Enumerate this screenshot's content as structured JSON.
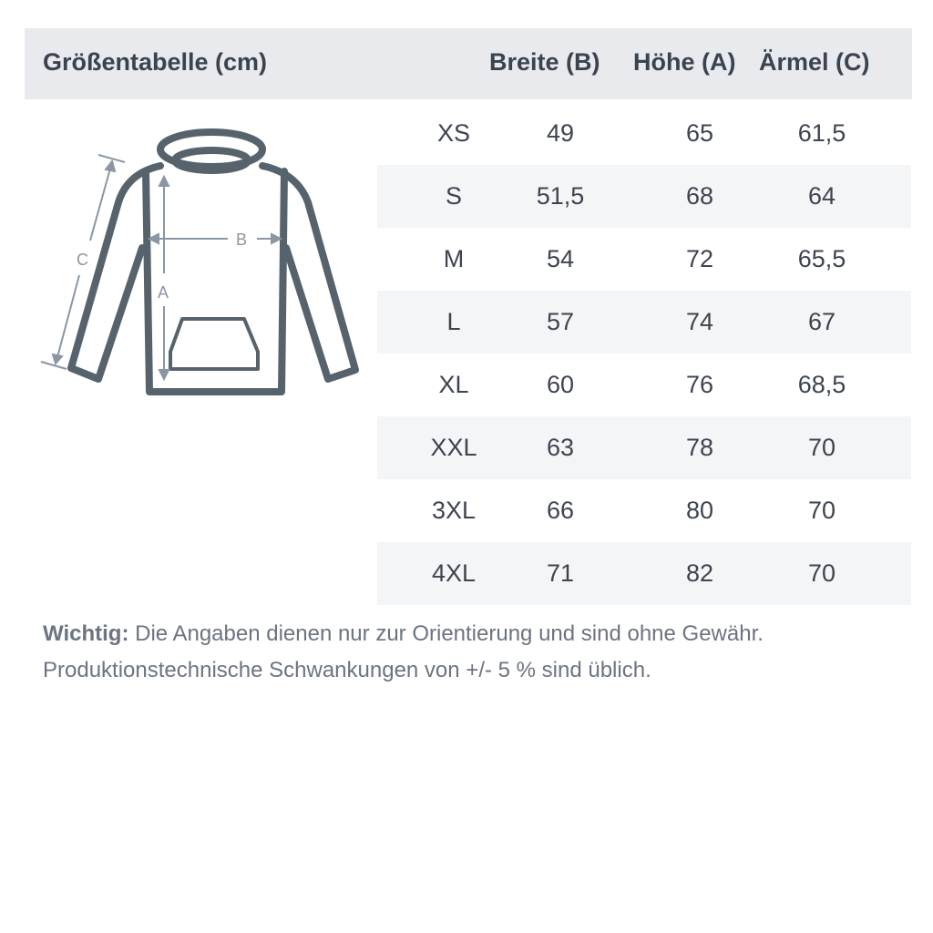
{
  "header": {
    "title": "Größentabelle (cm)",
    "col_breite": "Breite (B)",
    "col_hoehe": "Höhe (A)",
    "col_aermel": "Ärmel (C)"
  },
  "figure": {
    "label_a": "A",
    "label_b": "B",
    "label_c": "C"
  },
  "rows": [
    {
      "size": "XS",
      "breite": "49",
      "hoehe": "65",
      "aermel": "61,5"
    },
    {
      "size": "S",
      "breite": "51,5",
      "hoehe": "68",
      "aermel": "64"
    },
    {
      "size": "M",
      "breite": "54",
      "hoehe": "72",
      "aermel": "65,5"
    },
    {
      "size": "L",
      "breite": "57",
      "hoehe": "74",
      "aermel": "67"
    },
    {
      "size": "XL",
      "breite": "60",
      "hoehe": "76",
      "aermel": "68,5"
    },
    {
      "size": "XXL",
      "breite": "63",
      "hoehe": "78",
      "aermel": "70"
    },
    {
      "size": "3XL",
      "breite": "66",
      "hoehe": "80",
      "aermel": "70"
    },
    {
      "size": "4XL",
      "breite": "71",
      "hoehe": "82",
      "aermel": "70"
    }
  ],
  "note": {
    "bold": "Wichtig:",
    "line1": " Die Angaben dienen nur zur Orientierung und sind ohne Gewähr.",
    "line2": "Produktionstechnische Schwankungen von +/- 5 % sind üblich."
  },
  "colors": {
    "header_bg": "#e9eaee",
    "stripe": "#f4f5f7",
    "outline": "#56636c",
    "dimension": "#8a96a3"
  }
}
